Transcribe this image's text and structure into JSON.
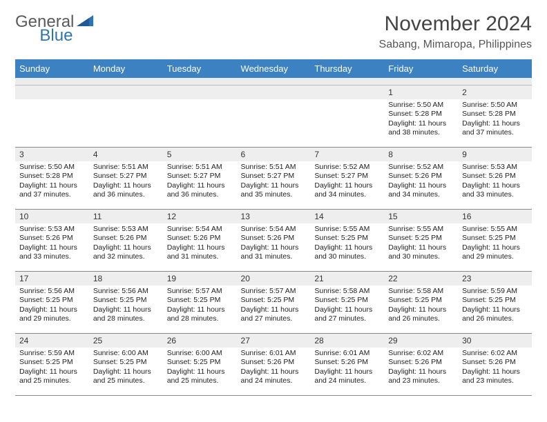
{
  "logo": {
    "text1": "General",
    "text2": "Blue"
  },
  "title": "November 2024",
  "location": "Sabang, Mimaropa, Philippines",
  "colors": {
    "header_bg": "#3c81c2",
    "header_text": "#ffffff",
    "daynum_bg": "#eeeeee",
    "empty_bg": "#ececec",
    "border": "#888888",
    "logo_gray": "#5a5a5a",
    "logo_blue": "#2e74b5"
  },
  "week_header": [
    "Sunday",
    "Monday",
    "Tuesday",
    "Wednesday",
    "Thursday",
    "Friday",
    "Saturday"
  ],
  "weeks": [
    [
      null,
      null,
      null,
      null,
      null,
      {
        "n": "1",
        "sr": "5:50 AM",
        "ss": "5:28 PM",
        "dl": "11 hours and 38 minutes."
      },
      {
        "n": "2",
        "sr": "5:50 AM",
        "ss": "5:28 PM",
        "dl": "11 hours and 37 minutes."
      }
    ],
    [
      {
        "n": "3",
        "sr": "5:50 AM",
        "ss": "5:28 PM",
        "dl": "11 hours and 37 minutes."
      },
      {
        "n": "4",
        "sr": "5:51 AM",
        "ss": "5:27 PM",
        "dl": "11 hours and 36 minutes."
      },
      {
        "n": "5",
        "sr": "5:51 AM",
        "ss": "5:27 PM",
        "dl": "11 hours and 36 minutes."
      },
      {
        "n": "6",
        "sr": "5:51 AM",
        "ss": "5:27 PM",
        "dl": "11 hours and 35 minutes."
      },
      {
        "n": "7",
        "sr": "5:52 AM",
        "ss": "5:27 PM",
        "dl": "11 hours and 34 minutes."
      },
      {
        "n": "8",
        "sr": "5:52 AM",
        "ss": "5:26 PM",
        "dl": "11 hours and 34 minutes."
      },
      {
        "n": "9",
        "sr": "5:53 AM",
        "ss": "5:26 PM",
        "dl": "11 hours and 33 minutes."
      }
    ],
    [
      {
        "n": "10",
        "sr": "5:53 AM",
        "ss": "5:26 PM",
        "dl": "11 hours and 33 minutes."
      },
      {
        "n": "11",
        "sr": "5:53 AM",
        "ss": "5:26 PM",
        "dl": "11 hours and 32 minutes."
      },
      {
        "n": "12",
        "sr": "5:54 AM",
        "ss": "5:26 PM",
        "dl": "11 hours and 31 minutes."
      },
      {
        "n": "13",
        "sr": "5:54 AM",
        "ss": "5:26 PM",
        "dl": "11 hours and 31 minutes."
      },
      {
        "n": "14",
        "sr": "5:55 AM",
        "ss": "5:25 PM",
        "dl": "11 hours and 30 minutes."
      },
      {
        "n": "15",
        "sr": "5:55 AM",
        "ss": "5:25 PM",
        "dl": "11 hours and 30 minutes."
      },
      {
        "n": "16",
        "sr": "5:55 AM",
        "ss": "5:25 PM",
        "dl": "11 hours and 29 minutes."
      }
    ],
    [
      {
        "n": "17",
        "sr": "5:56 AM",
        "ss": "5:25 PM",
        "dl": "11 hours and 29 minutes."
      },
      {
        "n": "18",
        "sr": "5:56 AM",
        "ss": "5:25 PM",
        "dl": "11 hours and 28 minutes."
      },
      {
        "n": "19",
        "sr": "5:57 AM",
        "ss": "5:25 PM",
        "dl": "11 hours and 28 minutes."
      },
      {
        "n": "20",
        "sr": "5:57 AM",
        "ss": "5:25 PM",
        "dl": "11 hours and 27 minutes."
      },
      {
        "n": "21",
        "sr": "5:58 AM",
        "ss": "5:25 PM",
        "dl": "11 hours and 27 minutes."
      },
      {
        "n": "22",
        "sr": "5:58 AM",
        "ss": "5:25 PM",
        "dl": "11 hours and 26 minutes."
      },
      {
        "n": "23",
        "sr": "5:59 AM",
        "ss": "5:25 PM",
        "dl": "11 hours and 26 minutes."
      }
    ],
    [
      {
        "n": "24",
        "sr": "5:59 AM",
        "ss": "5:25 PM",
        "dl": "11 hours and 25 minutes."
      },
      {
        "n": "25",
        "sr": "6:00 AM",
        "ss": "5:25 PM",
        "dl": "11 hours and 25 minutes."
      },
      {
        "n": "26",
        "sr": "6:00 AM",
        "ss": "5:25 PM",
        "dl": "11 hours and 25 minutes."
      },
      {
        "n": "27",
        "sr": "6:01 AM",
        "ss": "5:26 PM",
        "dl": "11 hours and 24 minutes."
      },
      {
        "n": "28",
        "sr": "6:01 AM",
        "ss": "5:26 PM",
        "dl": "11 hours and 24 minutes."
      },
      {
        "n": "29",
        "sr": "6:02 AM",
        "ss": "5:26 PM",
        "dl": "11 hours and 23 minutes."
      },
      {
        "n": "30",
        "sr": "6:02 AM",
        "ss": "5:26 PM",
        "dl": "11 hours and 23 minutes."
      }
    ]
  ],
  "labels": {
    "sunrise": "Sunrise: ",
    "sunset": "Sunset: ",
    "daylight": "Daylight: "
  }
}
